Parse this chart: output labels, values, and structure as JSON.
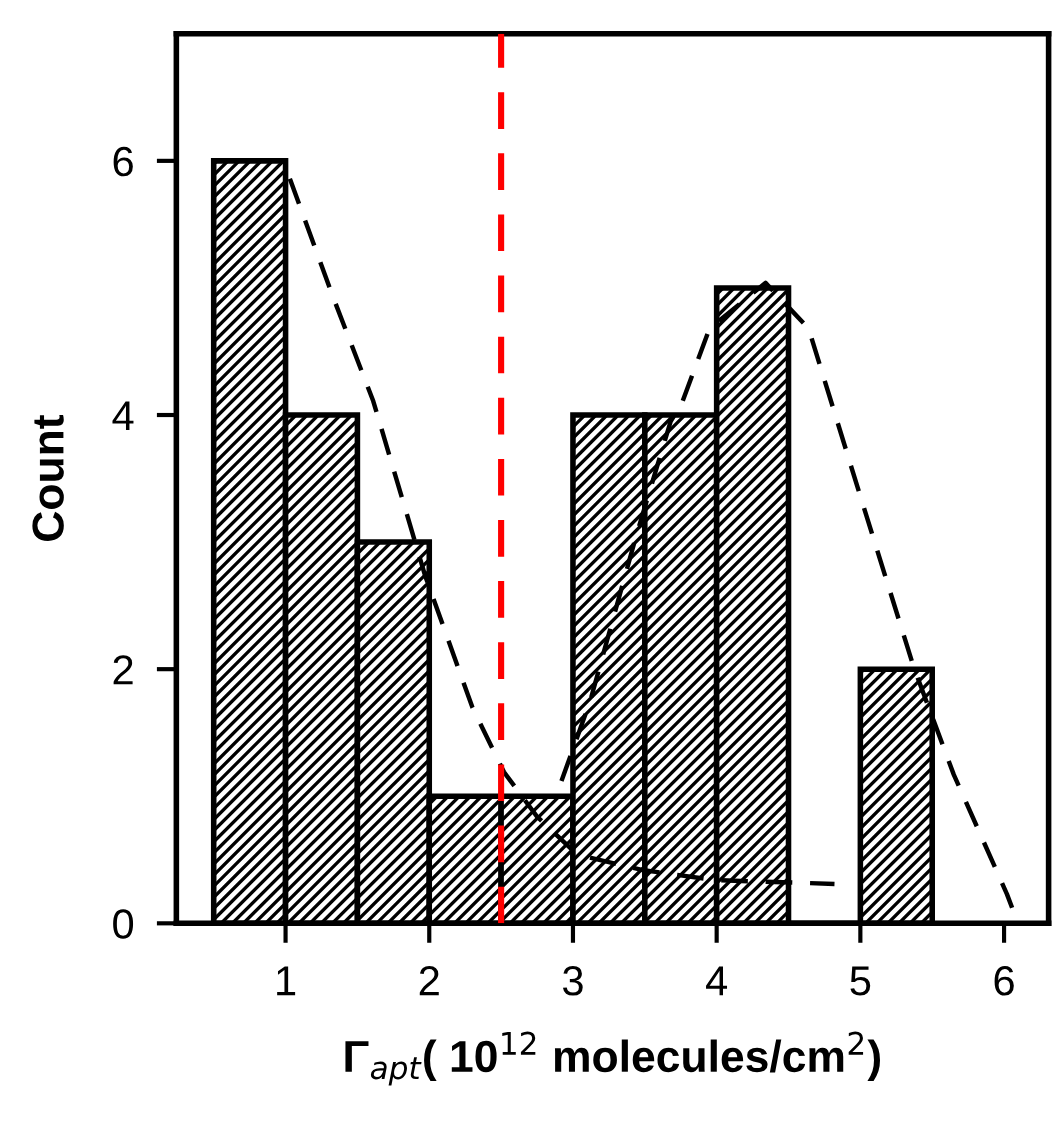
{
  "chart_data": {
    "type": "histogram",
    "xlabel": "Γ$_{apt}$( 10$^{12}$ molecules/cm$^{2}$)",
    "ylabel": "Count",
    "bins": [
      0.5,
      1.0,
      1.5,
      2.0,
      2.5,
      3.0,
      3.5,
      4.0,
      4.5,
      5.0,
      5.5
    ],
    "values": [
      6,
      4,
      3,
      1,
      1,
      4,
      4,
      5,
      0,
      2
    ],
    "color": "#000000",
    "series": [
      {
        "type": "line",
        "color": "#000000",
        "line_style": "dashed",
        "x": [
          1.03,
          1.33,
          1.61,
          1.97,
          2.3,
          2.52,
          2.75,
          3.03,
          3.48,
          3.99,
          4.82
        ],
        "values": [
          5.86,
          4.93,
          4.11,
          2.74,
          1.7,
          1.19,
          0.84,
          0.54,
          0.42,
          0.34,
          0.31
        ]
      },
      {
        "type": "line",
        "color": "#000000",
        "line_style": "dashed",
        "x": [
          2.92,
          3.12,
          3.44,
          3.68,
          3.76,
          3.95,
          4.34,
          4.64,
          5.0,
          5.37,
          5.65,
          6.02,
          6.08
        ],
        "values": [
          1.12,
          1.75,
          3.05,
          3.95,
          4.1,
          4.68,
          5.04,
          4.68,
          3.36,
          2.02,
          1.17,
          0.23,
          0.05
        ]
      }
    ],
    "ref_lines": [
      {
        "axis": "x",
        "value": 2.5,
        "color": "#ff0000",
        "line_style": "dashed"
      }
    ],
    "xlim": [
      0.24,
      6.31
    ],
    "ylim": [
      0,
      7
    ],
    "xticks": [
      1,
      2,
      3,
      4,
      5,
      6
    ],
    "yticks": [
      0,
      2,
      4,
      6
    ],
    "grid": false,
    "legend": false
  }
}
